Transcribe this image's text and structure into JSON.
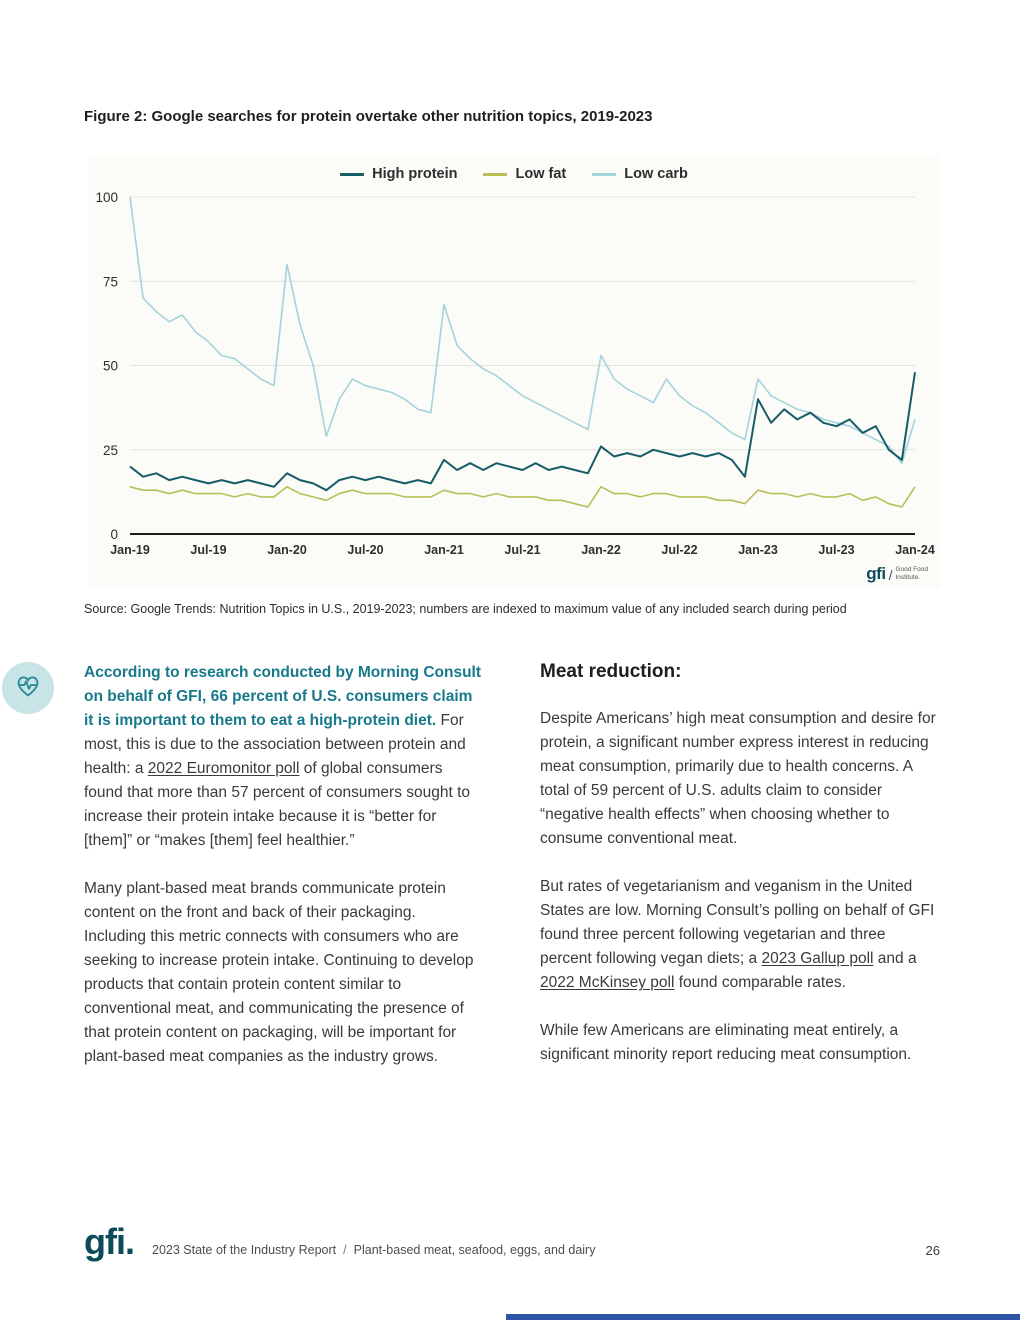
{
  "figure": {
    "title": "Figure 2: Google searches for protein overtake other nutrition topics, 2019-2023",
    "source": "Source: Google Trends: Nutrition Topics in U.S., 2019-2023; numbers are indexed to maximum value of any included search during period"
  },
  "chart_data": {
    "type": "line",
    "title": "Google searches for protein overtake other nutrition topics, 2019-2023",
    "x_labels": [
      "Jan-19",
      "Jul-19",
      "Jan-20",
      "Jul-20",
      "Jan-21",
      "Jul-21",
      "Jan-22",
      "Jul-22",
      "Jan-23",
      "Jul-23",
      "Jan-24"
    ],
    "x_tick_every": 6,
    "ylim": [
      0,
      100
    ],
    "y_ticks": [
      0,
      25,
      50,
      75,
      100
    ],
    "grid": "horizontal",
    "legend_position": "top-center",
    "series": [
      {
        "name": "High protein",
        "color": "#175d68",
        "width": 2,
        "values": [
          20,
          17,
          18,
          16,
          17,
          16,
          15,
          16,
          15,
          16,
          15,
          14,
          18,
          16,
          15,
          13,
          16,
          17,
          16,
          17,
          16,
          15,
          16,
          15,
          22,
          19,
          21,
          19,
          21,
          20,
          19,
          21,
          19,
          20,
          19,
          18,
          26,
          23,
          24,
          23,
          25,
          24,
          23,
          24,
          23,
          24,
          22,
          17,
          40,
          33,
          37,
          34,
          36,
          33,
          32,
          34,
          30,
          32,
          25,
          22,
          48
        ]
      },
      {
        "name": "Low fat",
        "color": "#b9bf57",
        "width": 1.6,
        "values": [
          14,
          13,
          13,
          12,
          13,
          12,
          12,
          12,
          11,
          12,
          11,
          11,
          14,
          12,
          11,
          10,
          12,
          13,
          12,
          12,
          12,
          11,
          11,
          11,
          13,
          12,
          12,
          11,
          12,
          11,
          11,
          11,
          10,
          10,
          9,
          8,
          14,
          12,
          12,
          11,
          12,
          12,
          11,
          11,
          11,
          10,
          10,
          9,
          13,
          12,
          12,
          11,
          12,
          11,
          11,
          12,
          10,
          11,
          9,
          8,
          14
        ]
      },
      {
        "name": "Low carb",
        "color": "#a5d3dc",
        "width": 1.6,
        "values": [
          100,
          70,
          66,
          63,
          65,
          60,
          57,
          53,
          52,
          49,
          46,
          44,
          80,
          62,
          50,
          29,
          40,
          46,
          44,
          43,
          42,
          40,
          37,
          36,
          68,
          56,
          52,
          49,
          47,
          44,
          41,
          39,
          37,
          35,
          33,
          31,
          53,
          46,
          43,
          41,
          39,
          46,
          41,
          38,
          36,
          33,
          30,
          28,
          46,
          41,
          39,
          37,
          36,
          34,
          33,
          32,
          30,
          28,
          26,
          21,
          34
        ]
      }
    ]
  },
  "chart_logo": {
    "brand": "gfi",
    "slash": "/",
    "name_line1": "Good Food",
    "name_line2": "Institute."
  },
  "left_column": {
    "intro_highlight": "According to research conducted by Morning Consult on behalf of GFI, 66 percent of U.S. consumers claim it is important to them to eat a high-protein diet.",
    "intro_rest_1": " For most, this is due to the association between protein and health: a ",
    "link_euromonitor": "2022 Euromonitor poll",
    "intro_rest_2": " of global consumers found that more than 57 percent of consumers sought to increase their protein intake because it is “better for [them]” or “makes [them] feel healthier.”",
    "para2": "Many plant-based meat brands communicate protein content on the front and back of their packaging. Including this metric connects with consumers who are seeking to increase protein intake. Continuing to develop products that contain protein content similar to conventional meat, and communicating the presence of that protein content on packaging, will be important for plant-based meat companies as the industry grows."
  },
  "right_column": {
    "heading": "Meat reduction:",
    "para1": "Despite Americans’ high meat consumption and desire for protein, a significant number express interest in reducing meat consumption, primarily due to health concerns. A total of 59 percent of U.S. adults claim to consider “negative health effects” when choosing whether to consume conventional meat.",
    "para2_part1": "But rates of vegetarianism and veganism in the United States are low. Morning Consult’s polling on behalf of GFI found three percent following vegetarian and three percent following vegan diets; a ",
    "link_gallup": "2023 Gallup poll",
    "para2_part2": " and a ",
    "link_mckinsey": "2022 McKinsey poll",
    "para2_part3": " found comparable rates.",
    "para3": "While few Americans are eliminating meat entirely, a significant minority report reducing meat consumption."
  },
  "footer": {
    "logo": "gfi.",
    "report": "2023 State of the Industry Report",
    "separator": "/",
    "section": "Plant-based meat, seafood, eggs, and dairy",
    "page": "26"
  },
  "colors": {
    "accent_teal": "#17798a",
    "logo_teal": "#0c4b59",
    "bottom_bar_blue": "#2e55a5",
    "chart_panel_bg": "#fbfbf8"
  }
}
